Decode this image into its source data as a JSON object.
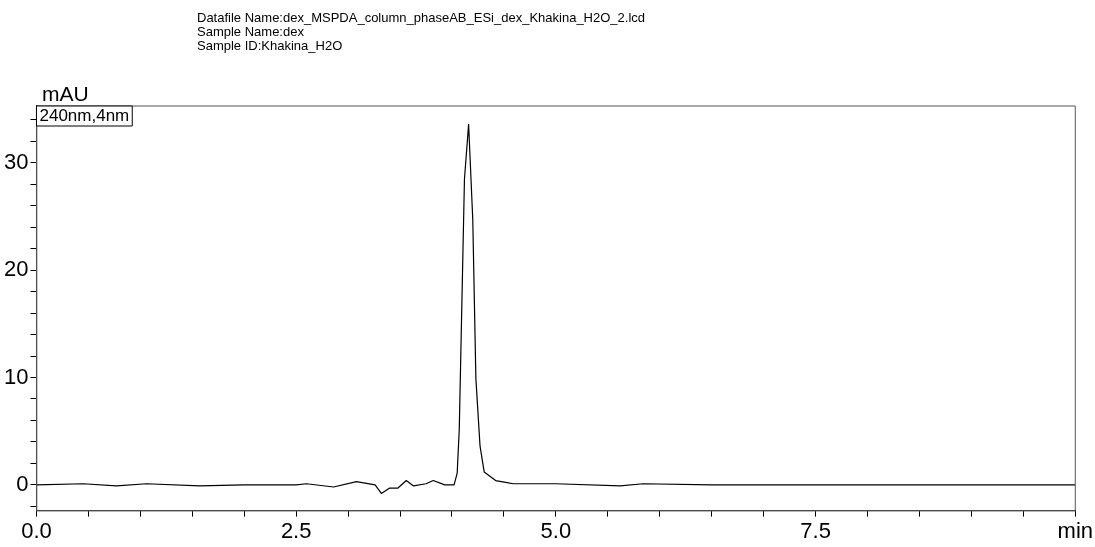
{
  "chart_data": {
    "type": "line",
    "title": "Datafile Name:dex_MSPDA_column_phaseAB_ESi_dex_Khakina_H2O_2.lcd",
    "subtitle": "Sample Name:dex\nSample ID:Khakina_H2O",
    "ylabel": "mAU",
    "legend": "top left",
    "marker": "none",
    "line_style": "solid",
    "grid": false,
    "xlim": [
      0,
      10
    ],
    "ylim": [
      -2.4,
      35.3
    ],
    "xticks": [
      {
        "value": 0,
        "label": "0.0"
      },
      {
        "value": 0.5,
        "label": null
      },
      {
        "value": 1,
        "label": null
      },
      {
        "value": 1.5,
        "label": null
      },
      {
        "value": 2,
        "label": null
      },
      2.5,
      {
        "value": 3,
        "label": null
      },
      {
        "value": 3.5,
        "label": null
      },
      {
        "value": 4,
        "label": null
      },
      {
        "value": 4.5,
        "label": null
      },
      {
        "value": 5,
        "label": "5.0"
      },
      {
        "value": 5.5,
        "label": null
      },
      {
        "value": 6,
        "label": null
      },
      {
        "value": 6.5,
        "label": null
      },
      {
        "value": 7,
        "label": null
      },
      7.5,
      {
        "value": 8,
        "label": null
      },
      {
        "value": 8.5,
        "label": null
      },
      {
        "value": 9,
        "label": null
      },
      {
        "value": 9.5,
        "label": null
      },
      {
        "value": 10,
        "label": "min"
      }
    ],
    "yticks": [
      {
        "value": -2,
        "label": null
      },
      0,
      {
        "value": 2,
        "label": null
      },
      {
        "value": 4,
        "label": null
      },
      {
        "value": 6,
        "label": null
      },
      {
        "value": 8,
        "label": null
      },
      10,
      {
        "value": 12,
        "label": null
      },
      {
        "value": 14,
        "label": null
      },
      {
        "value": 16,
        "label": null
      },
      {
        "value": 18,
        "label": null
      },
      20,
      {
        "value": 22,
        "label": null
      },
      {
        "value": 24,
        "label": null
      },
      {
        "value": 26,
        "label": null
      },
      {
        "value": 28,
        "label": null
      },
      30,
      {
        "value": 32,
        "label": null
      },
      {
        "value": 34,
        "label": null
      }
    ],
    "series": [
      {
        "name": "240nm,4nm",
        "color": "#000000",
        "x": [
          0,
          0.45,
          0.77,
          1.06,
          1.57,
          2.0,
          2.5,
          2.6,
          2.86,
          3.08,
          3.26,
          3.32,
          3.4,
          3.48,
          3.56,
          3.63,
          3.75,
          3.82,
          3.93,
          4.02,
          4.05,
          4.07,
          4.12,
          4.16,
          4.2,
          4.23,
          4.27,
          4.31,
          4.42,
          4.59,
          5.0,
          5.62,
          5.84,
          6.5,
          7.0,
          7.5,
          8.0,
          8.5,
          9.0,
          9.5,
          10
        ],
        "values": [
          0,
          0.1,
          -0.1,
          0.1,
          -0.1,
          0,
          0,
          0.1,
          -0.2,
          0.3,
          0,
          -0.8,
          -0.3,
          -0.3,
          0.4,
          -0.1,
          0.1,
          0.4,
          0,
          0,
          1.1,
          5.2,
          28.5,
          33.6,
          24.7,
          9.9,
          3.6,
          1.2,
          0.4,
          0.1,
          0.1,
          -0.1,
          0.1,
          0,
          0,
          0,
          0,
          0,
          0,
          0,
          0
        ]
      }
    ]
  }
}
